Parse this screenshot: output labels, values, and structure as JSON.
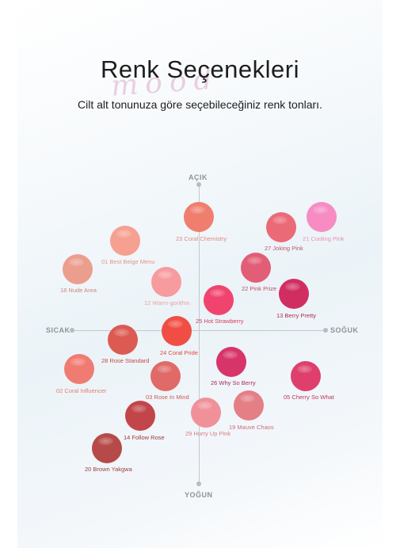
{
  "header": {
    "title": "Renk Seçenekleri",
    "watermark": "mood",
    "subtitle": "Cilt alt tonunuza göre seçebileceğiniz renk tonları."
  },
  "axes": {
    "top": "AÇIK",
    "bottom": "YOĞUN",
    "left": "SICAK",
    "right": "SOĞUK"
  },
  "shades": [
    {
      "label": "23 Coral Chemistry",
      "color": "#f07e6e",
      "label_color": "#e4897b"
    },
    {
      "label": "27 Joking Pink",
      "color": "#ea6a78",
      "label_color": "#c0526a"
    },
    {
      "label": "21 Cooling Pink",
      "color": "#f68cc2",
      "label_color": "#e98ebd"
    },
    {
      "label": "01 Best Beige Menu",
      "color": "#f6a091",
      "label_color": "#e49688"
    },
    {
      "label": "18 Nude Area",
      "color": "#ec9e8e",
      "label_color": "#cf8677"
    },
    {
      "label": "22 Pink Prize",
      "color": "#e25d76",
      "label_color": "#c24e66"
    },
    {
      "label": "12 Warm-gorithm",
      "color": "#f79b9e",
      "label_color": "#eda0a2"
    },
    {
      "label": "25 Hot Strawberry",
      "color": "#f0446e",
      "label_color": "#d63e60"
    },
    {
      "label": "13 Berry Pretty",
      "color": "#d02e61",
      "label_color": "#b02a52"
    },
    {
      "label": "28 Rose Standard",
      "color": "#dd5a53",
      "label_color": "#c14c48"
    },
    {
      "label": "24 Coral Pride",
      "color": "#f04e45",
      "label_color": "#e0493e"
    },
    {
      "label": "02 Coral Influencer",
      "color": "#f07b72",
      "label_color": "#e77b70"
    },
    {
      "label": "03 Rose In Mind",
      "color": "#e06a68",
      "label_color": "#cb5a58"
    },
    {
      "label": "26 Why So Berry",
      "color": "#d7356a",
      "label_color": "#ad2a57"
    },
    {
      "label": "05 Cherry So What",
      "color": "#df3f6c",
      "label_color": "#c2345d"
    },
    {
      "label": "14 Follow Rose",
      "color": "#c24549",
      "label_color": "#a13a3d"
    },
    {
      "label": "29 Hurry Up Pink",
      "color": "#f0919a",
      "label_color": "#d97c86"
    },
    {
      "label": "19 Mauve Chaos",
      "color": "#e47f86",
      "label_color": "#c8707a"
    },
    {
      "label": "20 Brown Yakgwa",
      "color": "#b64a48",
      "label_color": "#9c3e3d"
    }
  ]
}
